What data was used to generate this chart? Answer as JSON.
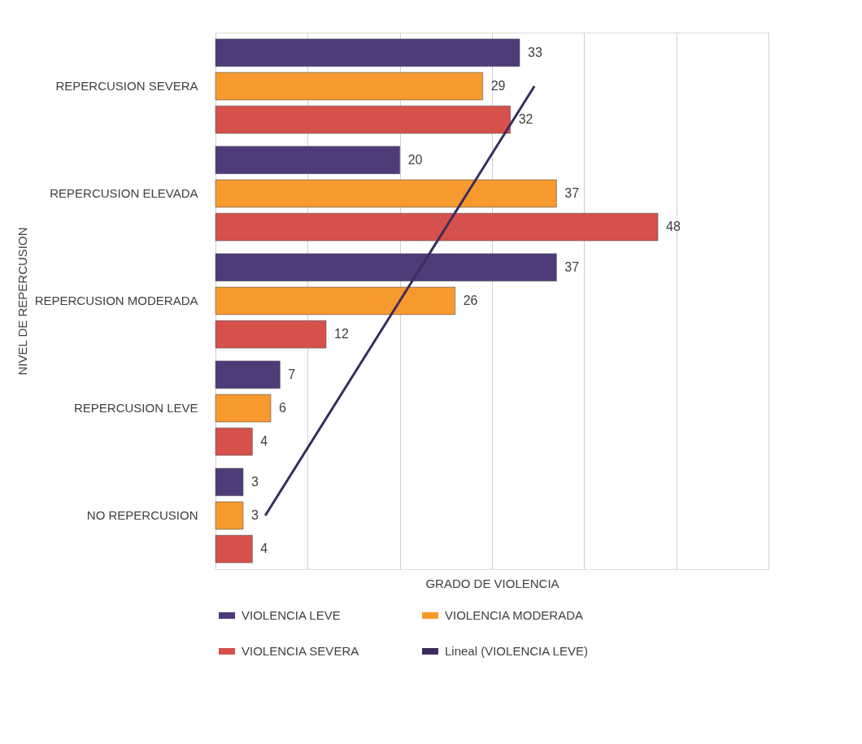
{
  "chart_data": {
    "type": "bar",
    "orientation": "horizontal",
    "xlabel": "GRADO DE VIOLENCIA",
    "ylabel": "NIVEL DE REPERCUSION",
    "categories": [
      "REPERCUSION SEVERA",
      "REPERCUSION ELEVADA",
      "REPERCUSION MODERADA",
      "REPERCUSION LEVE",
      "NO REPERCUSION"
    ],
    "series": [
      {
        "name": "VIOLENCIA LEVE",
        "color": "#4e3b78",
        "values": [
          33,
          20,
          37,
          7,
          3
        ],
        "value_labels": [
          "33",
          "20",
          "37",
          "7",
          "3"
        ]
      },
      {
        "name": "VIOLENCIA MODERADA",
        "color": "#f79a2e",
        "values": [
          29,
          37,
          26,
          6,
          3
        ],
        "value_labels": [
          "29",
          "37",
          "26",
          "6",
          "3"
        ]
      },
      {
        "name": "VIOLENCIA SEVERA",
        "color": "#d6504c",
        "values": [
          32,
          48,
          12,
          4,
          4
        ],
        "value_labels": [
          "32",
          "48",
          "12",
          "4",
          "4"
        ]
      },
      {
        "name": "Lineal (VIOLENCIA LEVE)",
        "type": "line",
        "color": "#3d2b5a",
        "values": [
          34.6,
          27.3,
          20,
          12.7,
          5.4
        ]
      }
    ],
    "xlim": [
      0,
      60
    ],
    "xticks": [
      {
        "value": 0,
        "label": null
      },
      {
        "value": 10,
        "label": null
      },
      {
        "value": 20,
        "label": null
      },
      {
        "value": 30,
        "label": null
      },
      {
        "value": 40,
        "label": null
      },
      {
        "value": 50,
        "label": null
      },
      {
        "value": 60,
        "label": null
      }
    ],
    "tick_labels": "y",
    "grid": "x",
    "legend": "bottom"
  }
}
